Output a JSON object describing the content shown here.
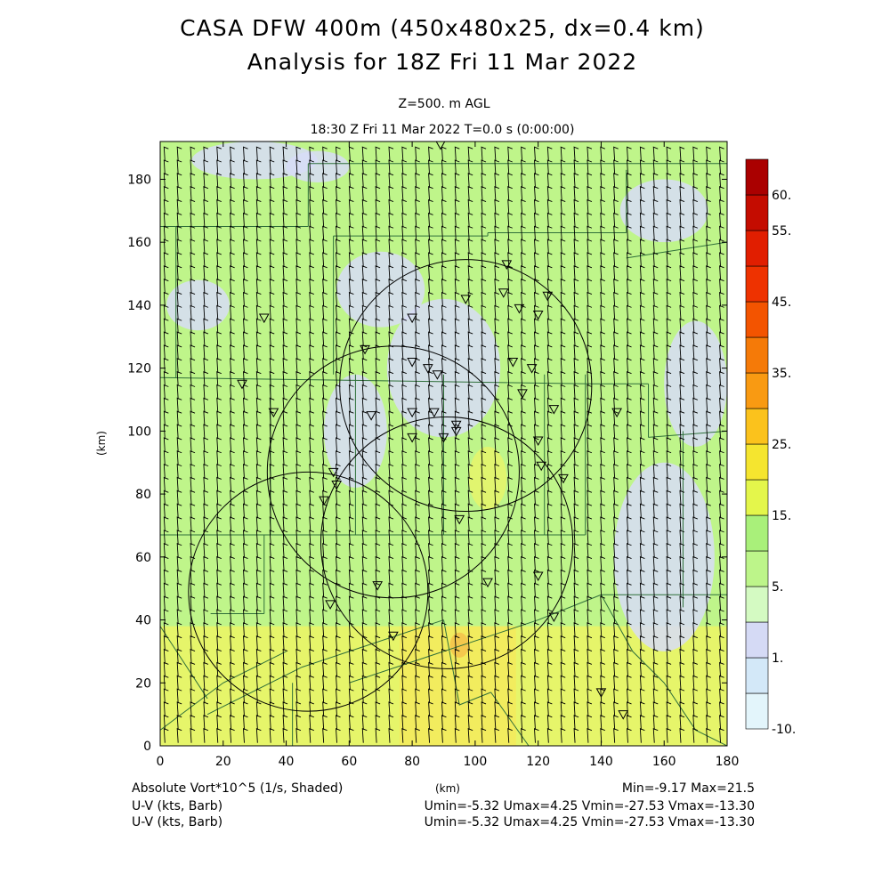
{
  "title_line1": "CASA DFW 400m (450x480x25, dx=0.4 km)",
  "title_line2": "Analysis for 18Z Fri 11 Mar 2022",
  "level_label": "Z=500. m AGL",
  "time_label": "18:30 Z Fri 11 Mar 2022    T=0.0 s (0:00:00)",
  "footer": {
    "field_label": "Absolute Vort*10^5 (1/s, Shaded)",
    "xunit": "(km)",
    "minmax": "Min=-9.17 Max=21.5",
    "vector_label_1": "U-V (kts, Barb)",
    "vector_stats_1": "Umin=-5.32 Umax=4.25 Vmin=-27.53 Vmax=-13.30",
    "vector_label_2": "U-V (kts, Barb)",
    "vector_stats_2": "Umin=-5.32 Umax=4.25 Vmin=-27.53 Vmax=-13.30"
  },
  "colors": {
    "fill_5_10": "#bff58a",
    "fill_1_5": "#d8fac0",
    "fill_low": "#d7dcf7",
    "fill_15": "#e6f56a",
    "fill_20": "#f2ec5e",
    "fill_25": "#f5c24a",
    "barb": "#000000",
    "boundary": "#2f6f3a",
    "ring": "#000000"
  },
  "chart_data": {
    "type": "heatmap",
    "xlabel": "(km)",
    "ylabel": "(km)",
    "xlim": [
      0,
      180
    ],
    "ylim": [
      0,
      192
    ],
    "xticks": [
      0,
      20,
      40,
      60,
      80,
      100,
      120,
      140,
      160,
      180
    ],
    "yticks": [
      0,
      20,
      40,
      60,
      80,
      100,
      120,
      140,
      160,
      180
    ],
    "colorbar": {
      "levels": [
        -10,
        0,
        1,
        3,
        5,
        10,
        15,
        20,
        25,
        30,
        35,
        40,
        45,
        50,
        55,
        60
      ],
      "labels": [
        "60.",
        "55.",
        "45.",
        "35.",
        "25.",
        "15.",
        "5.",
        "1.",
        "-10."
      ],
      "label_values": [
        60,
        55,
        45,
        35,
        25,
        15,
        5,
        1,
        -10
      ],
      "colors": [
        "#e3f5fb",
        "#d3e8f8",
        "#d5daf5",
        "#d4fac2",
        "#bdf58a",
        "#a9f07a",
        "#e4f64b",
        "#f5e52f",
        "#fbc21c",
        "#f99a12",
        "#f57a08",
        "#f35400",
        "#ee3200",
        "#e11e00",
        "#c40c00",
        "#aa0000"
      ]
    },
    "radar_rings": [
      {
        "cx": 97,
        "cy": 114.5,
        "r": 40
      },
      {
        "cx": 74,
        "cy": 87,
        "r": 40
      },
      {
        "cx": 91,
        "cy": 64.5,
        "r": 40
      },
      {
        "cx": 47,
        "cy": 49,
        "r": 38
      }
    ],
    "stations": [
      [
        89,
        191
      ],
      [
        110,
        153
      ],
      [
        97,
        142
      ],
      [
        109,
        144
      ],
      [
        123,
        143
      ],
      [
        114,
        139
      ],
      [
        120,
        137
      ],
      [
        80,
        136
      ],
      [
        33,
        136
      ],
      [
        65,
        126
      ],
      [
        80,
        122
      ],
      [
        85,
        120
      ],
      [
        112,
        122
      ],
      [
        118,
        120
      ],
      [
        88,
        118
      ],
      [
        26,
        115
      ],
      [
        115,
        112
      ],
      [
        36,
        106
      ],
      [
        67,
        105
      ],
      [
        80,
        106
      ],
      [
        87,
        106
      ],
      [
        94,
        102
      ],
      [
        125,
        107
      ],
      [
        145,
        106
      ],
      [
        80,
        98
      ],
      [
        90,
        98
      ],
      [
        94,
        100
      ],
      [
        120,
        97
      ],
      [
        121,
        89
      ],
      [
        128,
        85
      ],
      [
        55,
        87
      ],
      [
        56,
        83
      ],
      [
        52,
        78
      ],
      [
        95,
        72
      ],
      [
        69,
        51
      ],
      [
        104,
        52
      ],
      [
        120,
        54
      ],
      [
        54,
        45
      ],
      [
        125,
        41
      ],
      [
        74,
        35
      ],
      [
        140,
        17
      ],
      [
        147,
        10
      ]
    ],
    "fields": [
      {
        "type": "band",
        "x0": 0,
        "x1": 180,
        "y0": 0,
        "y1": 38,
        "value": 15
      },
      {
        "type": "band",
        "x0": 76,
        "x1": 113,
        "y0": 0,
        "y1": 38,
        "value": 20
      },
      {
        "type": "blob",
        "cx": 95,
        "cy": 32,
        "rx": 3,
        "ry": 4,
        "value": 25
      },
      {
        "type": "blob",
        "cx": 104,
        "cy": 85,
        "rx": 6,
        "ry": 10,
        "value": 15
      },
      {
        "type": "blob",
        "cx": 22,
        "cy": 100,
        "rx": 18,
        "ry": 14,
        "value": 10
      },
      {
        "type": "blob",
        "cx": 90,
        "cy": 120,
        "rx": 18,
        "ry": 22,
        "value": 0
      },
      {
        "type": "blob",
        "cx": 62,
        "cy": 100,
        "rx": 10,
        "ry": 18,
        "value": 0
      },
      {
        "type": "blob",
        "cx": 70,
        "cy": 145,
        "rx": 14,
        "ry": 12,
        "value": 0
      },
      {
        "type": "blob",
        "cx": 160,
        "cy": 60,
        "rx": 16,
        "ry": 30,
        "value": 0
      },
      {
        "type": "blob",
        "cx": 170,
        "cy": 115,
        "rx": 10,
        "ry": 20,
        "value": 0
      },
      {
        "type": "blob",
        "cx": 30,
        "cy": 186,
        "rx": 20,
        "ry": 6,
        "value": 0
      },
      {
        "type": "blob",
        "cx": 50,
        "cy": 184,
        "rx": 10,
        "ry": 5,
        "value": 0
      },
      {
        "type": "blob",
        "cx": 160,
        "cy": 170,
        "rx": 14,
        "ry": 10,
        "value": 0
      },
      {
        "type": "blob",
        "cx": 12,
        "cy": 140,
        "rx": 10,
        "ry": 8,
        "value": 0
      }
    ]
  }
}
